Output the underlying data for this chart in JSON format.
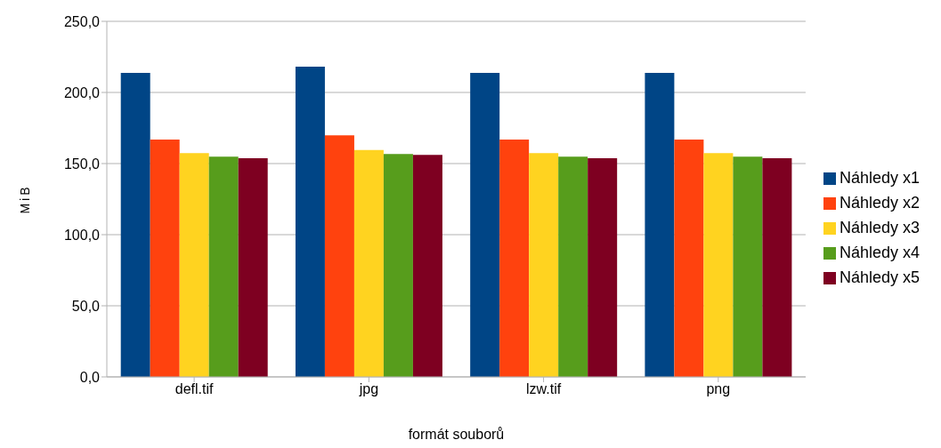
{
  "chart_data": {
    "type": "bar",
    "xlabel": "formát souborů",
    "ylabel": "MiB",
    "categories": [
      "defl.tif",
      "jpg",
      "lzw.tif",
      "png"
    ],
    "series": [
      {
        "name": "Náhledy x1",
        "color": "#004586",
        "values": [
          213.7,
          218.1,
          213.7,
          213.7
        ]
      },
      {
        "name": "Náhledy x2",
        "color": "#ff420e",
        "values": [
          166.8,
          169.8,
          166.8,
          166.8
        ]
      },
      {
        "name": "Náhledy x3",
        "color": "#ffd320",
        "values": [
          157.3,
          159.5,
          157.3,
          157.3
        ]
      },
      {
        "name": "Náhledy x4",
        "color": "#579d1c",
        "values": [
          154.8,
          156.7,
          154.8,
          154.8
        ]
      },
      {
        "name": "Náhledy x5",
        "color": "#7e0021",
        "values": [
          153.8,
          156.1,
          153.8,
          153.8
        ]
      }
    ],
    "ylim": [
      0,
      250
    ],
    "yticks": [
      {
        "value": 0,
        "label": "0,0"
      },
      {
        "value": 50,
        "label": "50,0"
      },
      {
        "value": 100,
        "label": "100,0"
      },
      {
        "value": 150,
        "label": "150,0"
      },
      {
        "value": 200,
        "label": "200,0"
      },
      {
        "value": 250,
        "label": "250,0"
      }
    ],
    "grid": "y",
    "legend": "right"
  }
}
